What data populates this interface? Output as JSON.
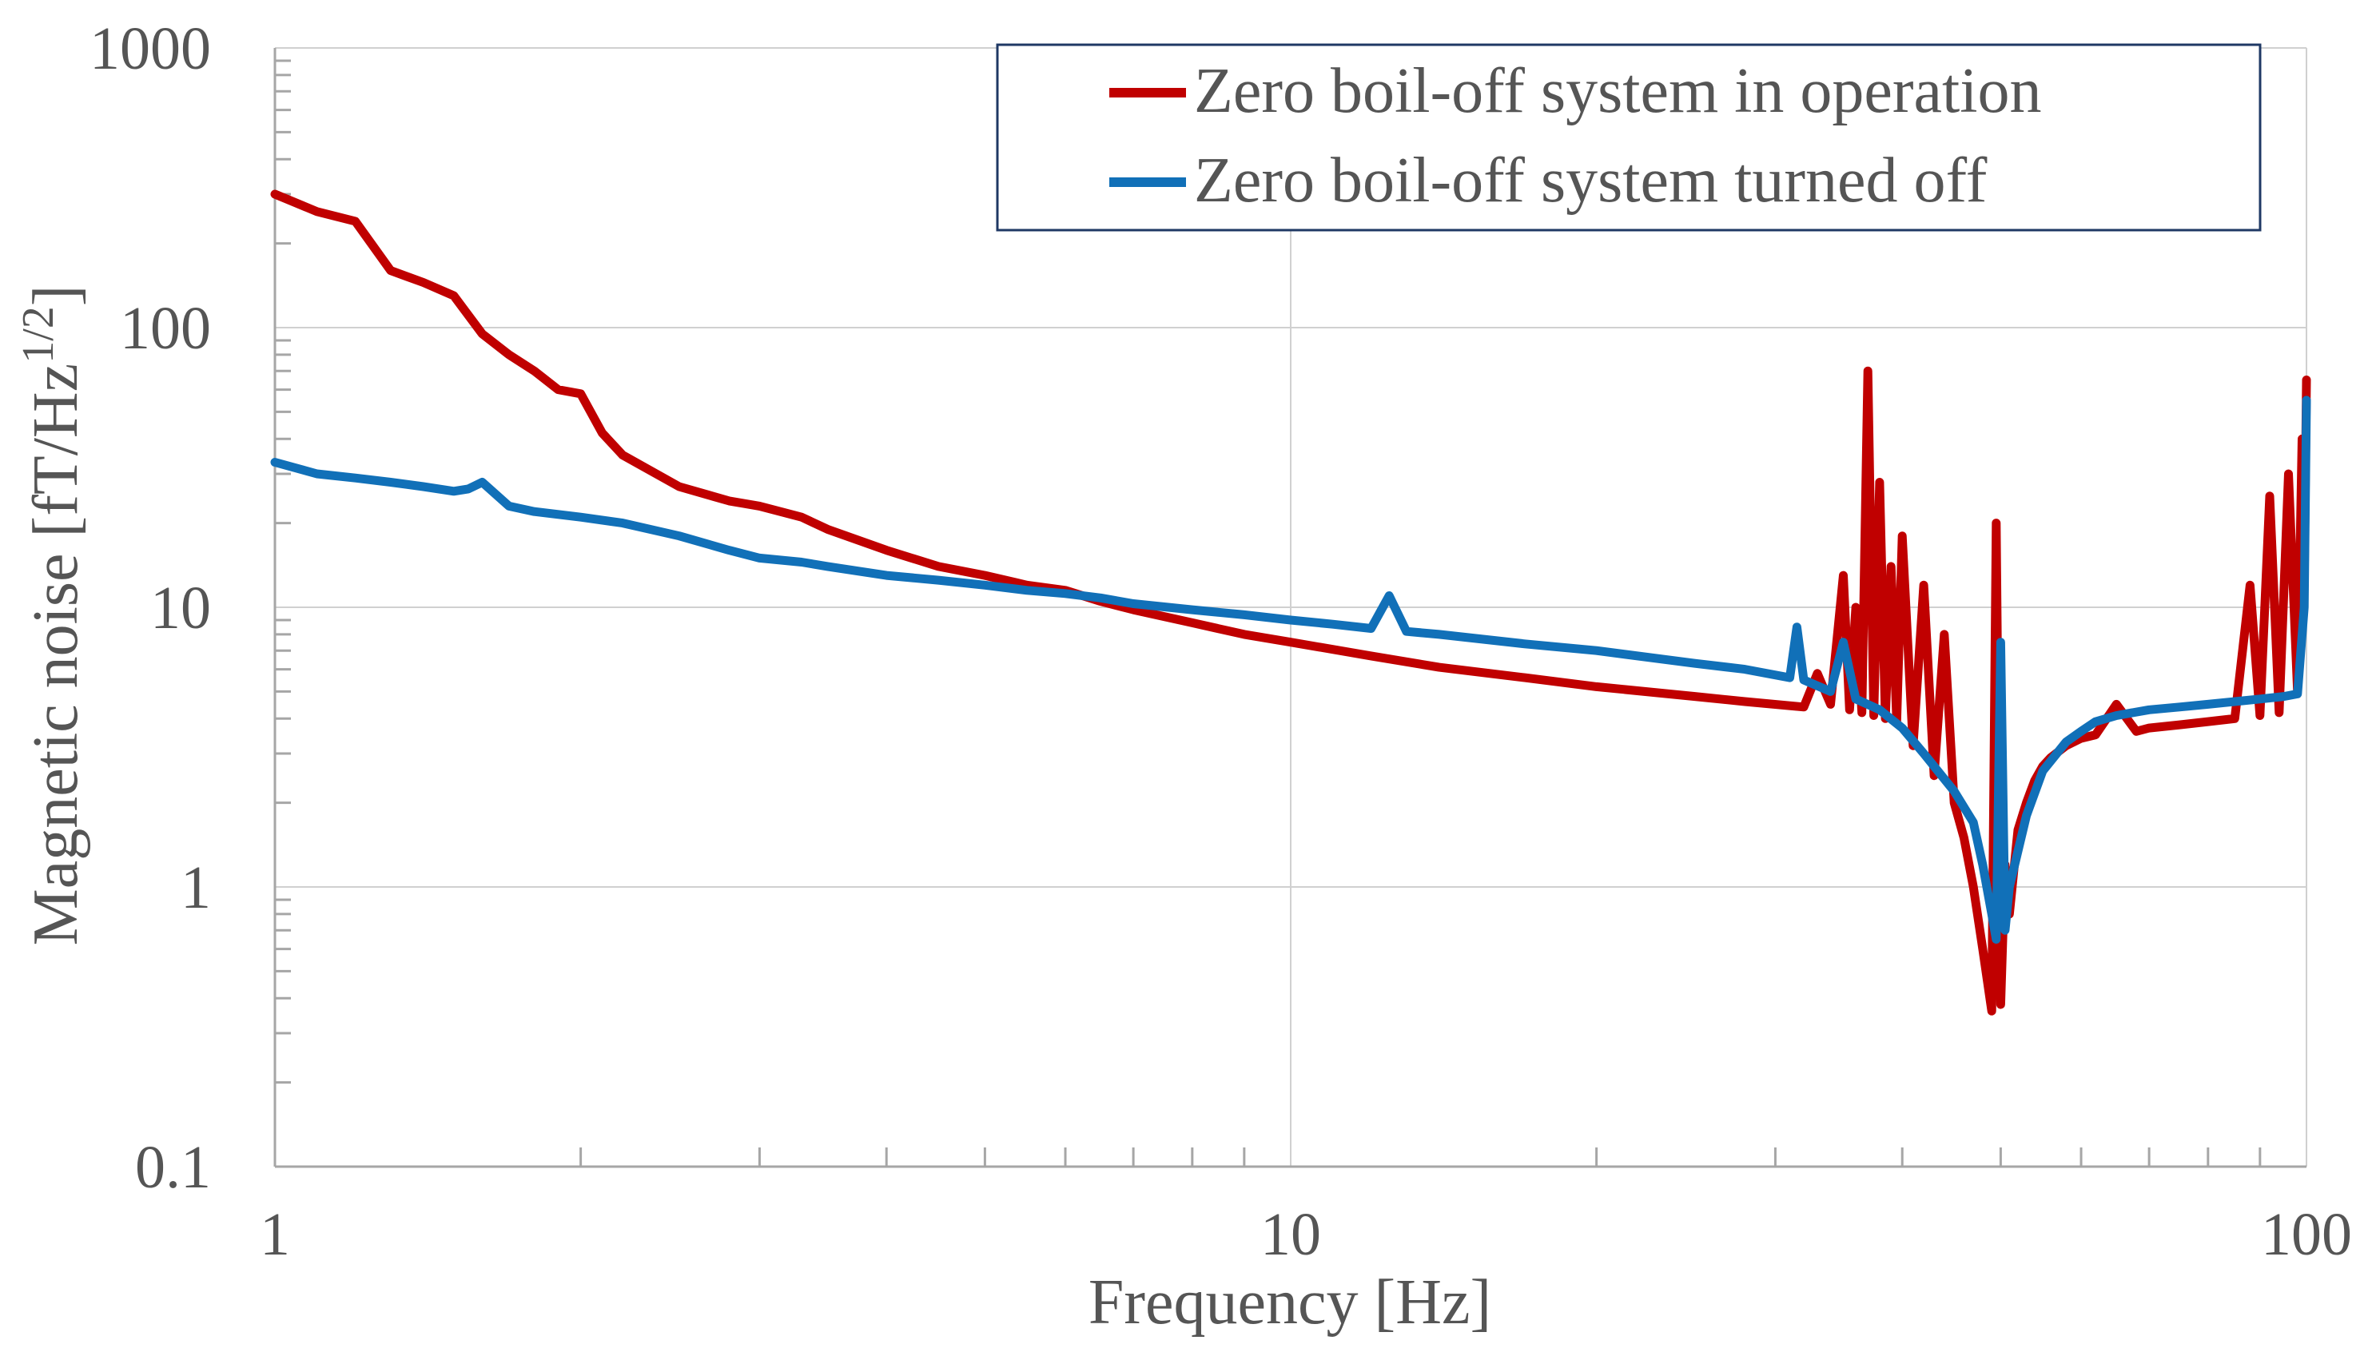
{
  "chart_data": {
    "type": "line",
    "title": "",
    "xlabel": "Frequency [Hz]",
    "ylabel": {
      "base": "Magnetic noise [fT/Hz",
      "sup": "1/2",
      "close": "]"
    },
    "xscale": "log",
    "yscale": "log",
    "xlim": [
      1,
      100
    ],
    "ylim": [
      0.1,
      1000
    ],
    "x_tick_labels": [
      "1",
      "10",
      "100"
    ],
    "y_tick_labels": [
      "0.1",
      "1",
      "10",
      "100",
      "1000"
    ],
    "grid": true,
    "legend_position": "top-right",
    "series": [
      {
        "name": "Zero boil-off system in operation",
        "color": "#c00000",
        "x": [
          1.0,
          1.1,
          1.2,
          1.3,
          1.4,
          1.5,
          1.6,
          1.7,
          1.8,
          1.9,
          2.0,
          2.1,
          2.2,
          2.5,
          2.8,
          3.0,
          3.3,
          3.5,
          4.0,
          4.5,
          5.0,
          5.5,
          6.0,
          6.5,
          7.0,
          8.0,
          9.0,
          10.0,
          12.0,
          14.0,
          17.0,
          20.0,
          25.0,
          28.0,
          32.0,
          33.0,
          34.0,
          35.0,
          35.5,
          36.0,
          36.5,
          37.0,
          37.5,
          38.0,
          38.5,
          39.0,
          39.5,
          40.0,
          41.0,
          42.0,
          43.0,
          44.0,
          45.0,
          46.0,
          47.0,
          48.0,
          49.0,
          49.5,
          50.0,
          50.5,
          51.0,
          52.0,
          53.0,
          54.0,
          55.0,
          56.0,
          58.0,
          60.0,
          62.0,
          65.0,
          68.0,
          70.0,
          75.0,
          80.0,
          85.0,
          88.0,
          90.0,
          92.0,
          94.0,
          96.0,
          98.0,
          99.0,
          99.5,
          100.0
        ],
        "values": [
          300,
          260,
          240,
          160,
          145,
          130,
          95,
          80,
          70,
          60,
          58,
          42,
          35,
          27,
          24,
          23,
          21,
          19,
          16,
          14,
          13,
          12,
          11.5,
          10.5,
          9.8,
          8.8,
          8.0,
          7.5,
          6.7,
          6.1,
          5.6,
          5.2,
          4.8,
          4.6,
          4.4,
          5.8,
          4.5,
          13,
          4.3,
          10,
          4.2,
          70,
          4.1,
          28,
          4.0,
          14,
          3.9,
          18,
          3.2,
          12,
          2.5,
          8,
          2.0,
          1.5,
          1.0,
          0.6,
          0.36,
          20,
          0.38,
          1.2,
          0.8,
          1.6,
          2.0,
          2.4,
          2.7,
          2.9,
          3.2,
          3.4,
          3.5,
          4.5,
          3.6,
          3.7,
          3.8,
          3.9,
          4.0,
          12,
          4.1,
          25,
          4.2,
          30,
          5.0,
          40,
          12,
          65
        ]
      },
      {
        "name": "Zero boil-off system turned off",
        "color": "#1170b8",
        "x": [
          1.0,
          1.1,
          1.2,
          1.3,
          1.4,
          1.5,
          1.55,
          1.6,
          1.7,
          1.8,
          2.0,
          2.2,
          2.5,
          2.8,
          3.0,
          3.3,
          3.5,
          4.0,
          4.5,
          5.0,
          5.5,
          6.0,
          6.5,
          7.0,
          8.0,
          9.0,
          10.0,
          11.0,
          12.0,
          12.5,
          13.0,
          14.0,
          17.0,
          20.0,
          25.0,
          28.0,
          31.0,
          31.5,
          32.0,
          34.0,
          35.0,
          36.0,
          38.0,
          40.0,
          42.0,
          45.0,
          47.0,
          48.0,
          49.0,
          49.5,
          50.0,
          50.5,
          51.0,
          53.0,
          55.0,
          58.0,
          60.0,
          62.0,
          65.0,
          70.0,
          75.0,
          80.0,
          85.0,
          90.0,
          95.0,
          98.0,
          99.5,
          100.0
        ],
        "values": [
          33,
          30,
          29,
          28,
          27,
          26,
          26.5,
          28,
          23,
          22,
          21,
          20,
          18,
          16,
          15,
          14.5,
          14,
          13,
          12.5,
          12,
          11.5,
          11.2,
          10.8,
          10.3,
          9.8,
          9.4,
          9.0,
          8.7,
          8.4,
          11,
          8.2,
          8.0,
          7.4,
          7.0,
          6.3,
          6.0,
          5.6,
          8.5,
          5.5,
          5.0,
          7.5,
          4.7,
          4.3,
          3.7,
          3.0,
          2.2,
          1.7,
          1.2,
          0.8,
          0.65,
          7.5,
          0.7,
          1.0,
          1.8,
          2.6,
          3.3,
          3.6,
          3.9,
          4.1,
          4.3,
          4.4,
          4.5,
          4.6,
          4.7,
          4.8,
          4.9,
          10,
          55
        ]
      }
    ]
  }
}
